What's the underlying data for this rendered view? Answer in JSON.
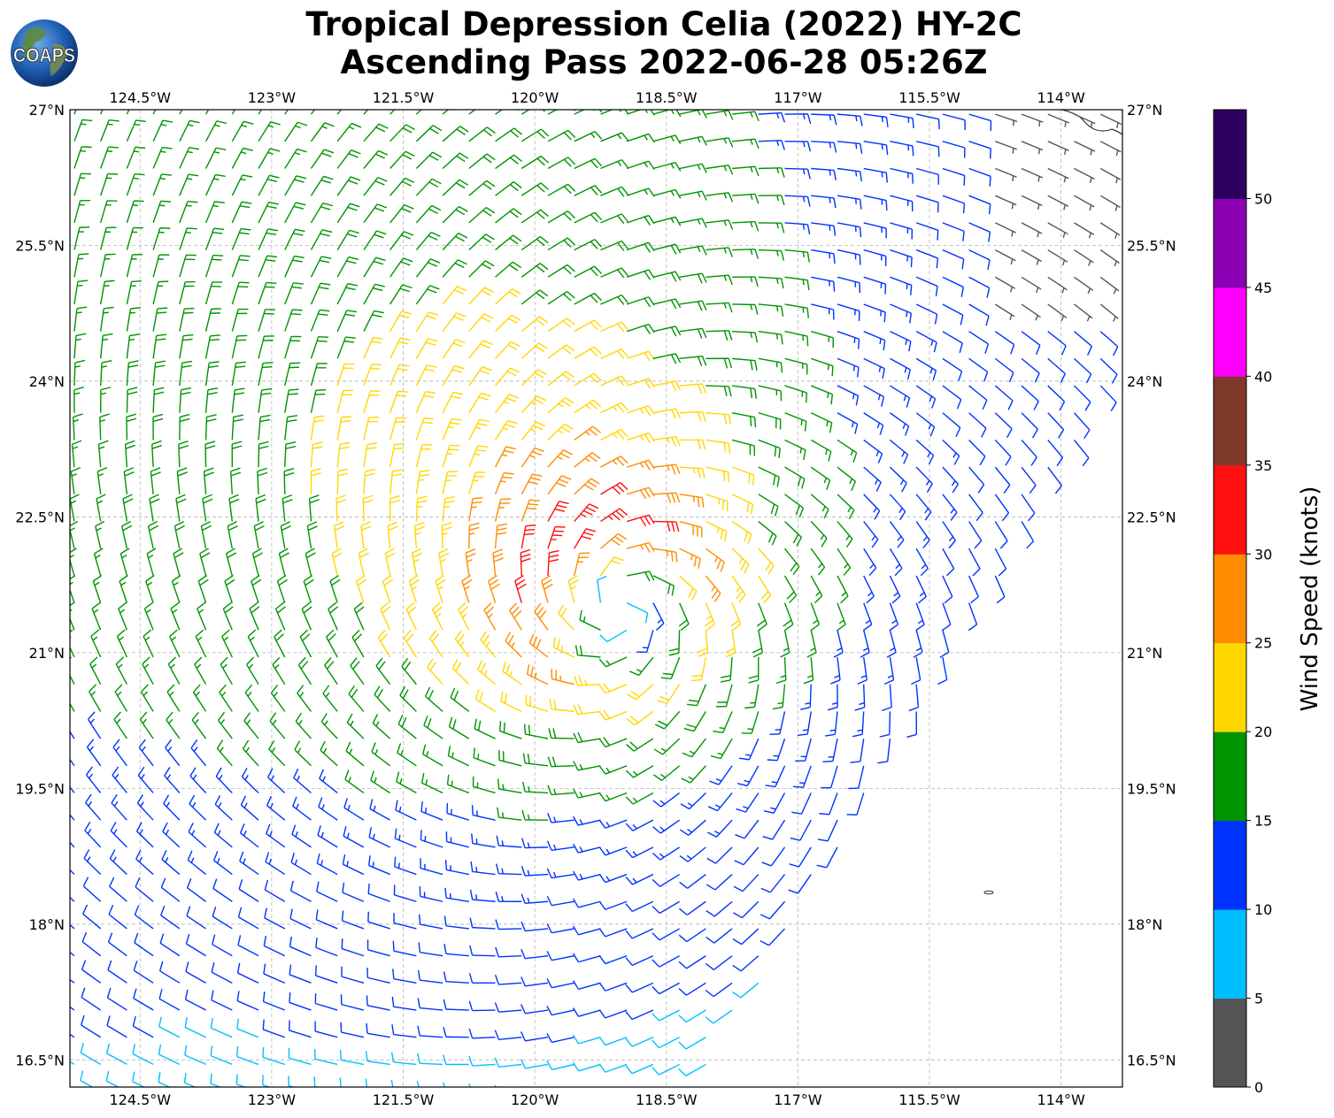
{
  "title": {
    "line1": "Tropical Depression Celia (2022) HY-2C",
    "line2": "Ascending Pass 2022-06-28 05:26Z"
  },
  "logo": {
    "text": "COAPS",
    "icon": "globe-logo-icon"
  },
  "map": {
    "lon_range": [
      -125.3,
      -113.3
    ],
    "lat_range": [
      16.2,
      27.0
    ],
    "lon_ticks": [
      {
        "value": -124.5,
        "label": "124.5°W"
      },
      {
        "value": -123.0,
        "label": "123°W"
      },
      {
        "value": -121.5,
        "label": "121.5°W"
      },
      {
        "value": -120.0,
        "label": "120°W"
      },
      {
        "value": -118.5,
        "label": "118.5°W"
      },
      {
        "value": -117.0,
        "label": "117°W"
      },
      {
        "value": -115.5,
        "label": "115.5°W"
      },
      {
        "value": -114.0,
        "label": "114°W"
      }
    ],
    "lat_ticks": [
      {
        "value": 27.0,
        "label": "27°N"
      },
      {
        "value": 25.5,
        "label": "25.5°N"
      },
      {
        "value": 24.0,
        "label": "24°N"
      },
      {
        "value": 22.5,
        "label": "22.5°N"
      },
      {
        "value": 21.0,
        "label": "21°N"
      },
      {
        "value": 19.5,
        "label": "19.5°N"
      },
      {
        "value": 18.0,
        "label": "18°N"
      },
      {
        "value": 16.5,
        "label": "16.5°N"
      }
    ],
    "grid": true,
    "grid_style": "dashed"
  },
  "chart_data": {
    "type": "wind_barbs",
    "storm_center": {
      "lon": -119.0,
      "lat": 21.5
    },
    "peak_wind_knots": 29,
    "swath_east_edge_note": "",
    "colorbar": {
      "label": "Wind Speed (knots)",
      "ticks": [
        0,
        5,
        10,
        15,
        20,
        25,
        30,
        35,
        40,
        45,
        50
      ],
      "range": [
        0,
        55
      ],
      "bins": [
        {
          "from": 0,
          "to": 5,
          "color": "#555555"
        },
        {
          "from": 5,
          "to": 10,
          "color": "#00bfff"
        },
        {
          "from": 10,
          "to": 15,
          "color": "#0033ff"
        },
        {
          "from": 15,
          "to": 20,
          "color": "#009400"
        },
        {
          "from": 20,
          "to": 25,
          "color": "#ffd700"
        },
        {
          "from": 25,
          "to": 30,
          "color": "#ff8c00"
        },
        {
          "from": 30,
          "to": 35,
          "color": "#ff0f0f"
        },
        {
          "from": 35,
          "to": 40,
          "color": "#7f3a2a"
        },
        {
          "from": 40,
          "to": 45,
          "color": "#ff00ff"
        },
        {
          "from": 45,
          "to": 50,
          "color": "#8c00b4"
        },
        {
          "from": 50,
          "to": 55,
          "color": "#2d005f"
        }
      ]
    }
  }
}
